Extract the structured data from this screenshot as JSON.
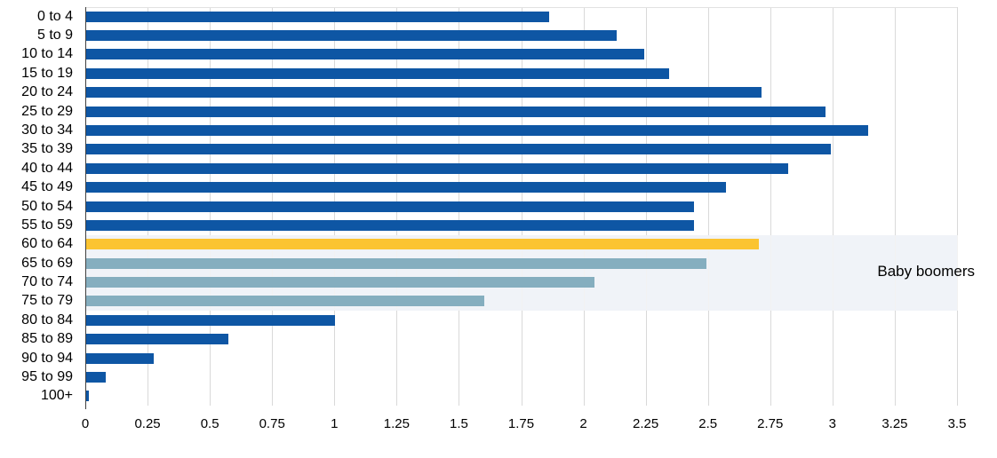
{
  "chart_data": {
    "type": "bar",
    "orientation": "horizontal",
    "title": "",
    "xlabel": "",
    "ylabel": "",
    "categories": [
      "0 to 4",
      "5 to 9",
      "10 to 14",
      "15 to 19",
      "20 to 24",
      "25 to 29",
      "30 to 34",
      "35 to 39",
      "40 to 44",
      "45 to 49",
      "50 to 54",
      "55 to 59",
      "60 to 64",
      "65 to 69",
      "70 to 74",
      "75 to 79",
      "80 to 84",
      "85 to 89",
      "90 to 94",
      "95 to 99",
      "100+"
    ],
    "values": [
      1.86,
      2.13,
      2.24,
      2.34,
      2.71,
      2.97,
      3.14,
      2.99,
      2.82,
      2.57,
      2.44,
      2.44,
      2.7,
      2.49,
      2.04,
      1.6,
      1.0,
      0.57,
      0.27,
      0.08,
      0.01
    ],
    "bar_styles": [
      "default",
      "default",
      "default",
      "default",
      "default",
      "default",
      "default",
      "default",
      "default",
      "default",
      "default",
      "default",
      "highlight",
      "boomer",
      "boomer",
      "boomer",
      "default",
      "default",
      "default",
      "default",
      "default"
    ],
    "xlim": [
      0,
      3.5
    ],
    "x_tick_labels": [
      "0",
      "0.25",
      "0.5",
      "0.75",
      "1",
      "1.25",
      "1.5",
      "1.75",
      "2",
      "2.25",
      "2.5",
      "2.75",
      "3",
      "3.25",
      "3.5"
    ],
    "x_tick_values": [
      0,
      0.25,
      0.5,
      0.75,
      1,
      1.25,
      1.5,
      1.75,
      2,
      2.25,
      2.5,
      2.75,
      3,
      3.25,
      3.5
    ],
    "grid": true,
    "legend": "none",
    "annotation": {
      "text": "Baby boomers",
      "band_start_category": "60 to 64",
      "band_end_category": "75 to 79"
    },
    "colors": {
      "default_bar": "#0E56A4",
      "highlight_bar": "#FBC431",
      "boomer_bar": "#85AEBF",
      "band": "#F0F3F8",
      "gridline": "#D9D9D9",
      "axis_line": "#404040",
      "text": "#000000"
    }
  }
}
